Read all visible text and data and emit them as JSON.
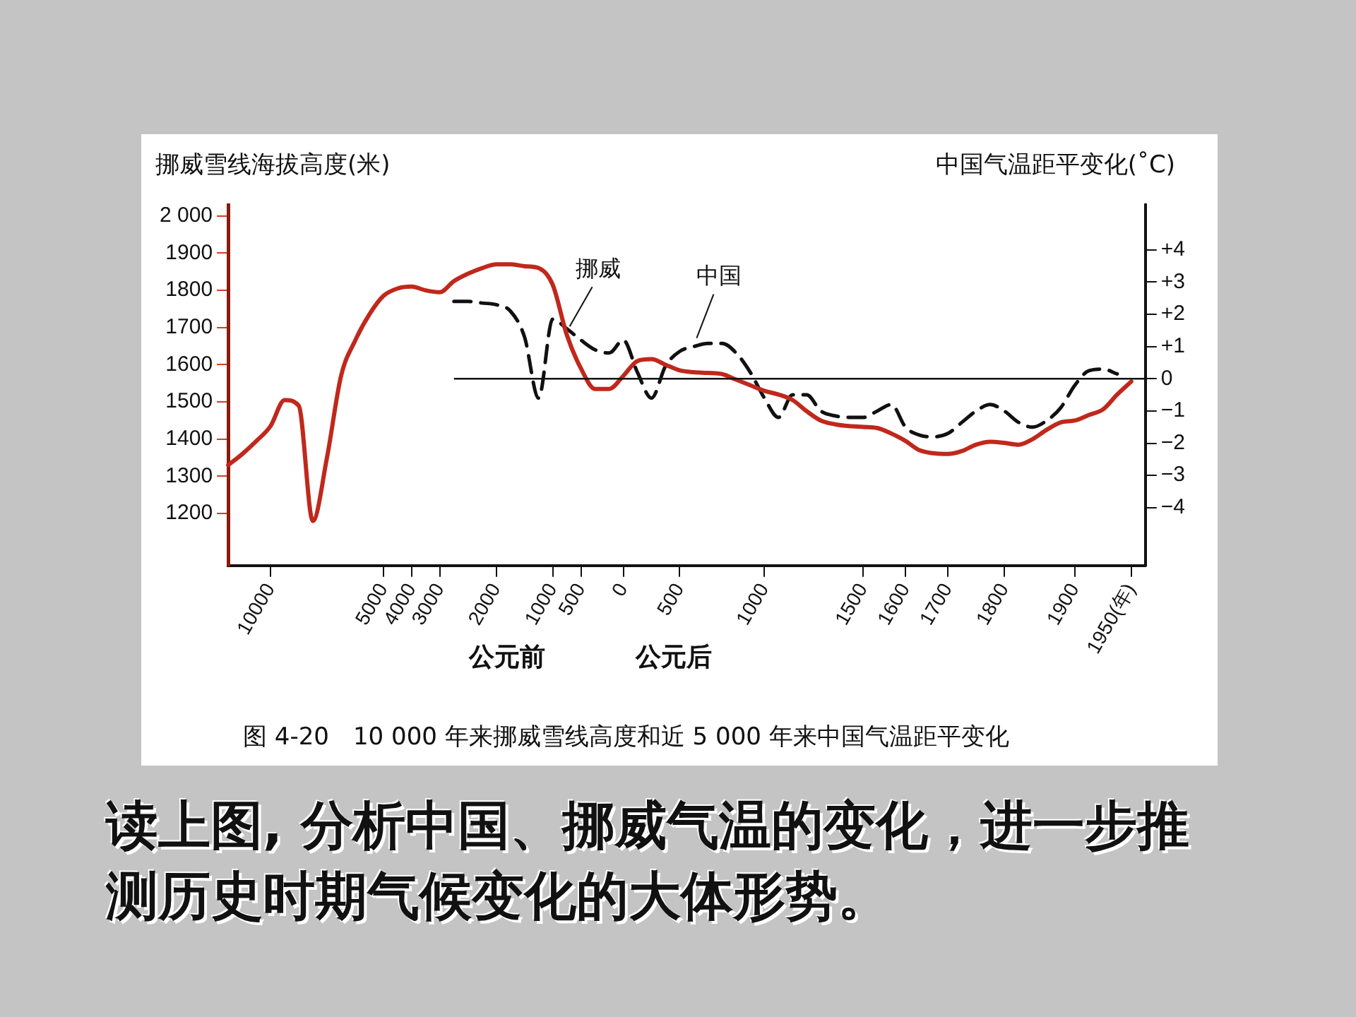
{
  "chart_data": {
    "type": "line",
    "ylabel": "挪威雪线海拔高度(米)",
    "y2label": "中国气温距平变化(˚C)",
    "categories": [
      null,
      null,
      null,
      "10000",
      null,
      null,
      null,
      null,
      null,
      null,
      null,
      "5000",
      null,
      "4000",
      null,
      "3000",
      null,
      null,
      null,
      "2000",
      null,
      null,
      null,
      "1000",
      null,
      "500",
      null,
      null,
      "0",
      null,
      null,
      null,
      "500",
      null,
      null,
      null,
      null,
      null,
      "1000",
      null,
      null,
      null,
      null,
      null,
      null,
      "1500",
      null,
      null,
      "1600",
      null,
      null,
      "1700",
      null,
      null,
      null,
      "1800",
      null,
      null,
      null,
      null,
      "1900",
      null,
      null,
      null,
      "1950(年)",
      null
    ],
    "series": [
      {
        "name": "挪威",
        "color": "#c0281c",
        "line_style": "solid",
        "values": [
          1330,
          1360,
          1395,
          1435,
          1505,
          1490,
          1180,
          1350,
          1570,
          1665,
          1735,
          1785,
          1805,
          1810,
          1800,
          1795,
          1825,
          1845,
          1860,
          1870,
          1870,
          1865,
          1860,
          1815,
          1680,
          1590,
          1535,
          1535,
          1570,
          1610,
          1615,
          1600,
          1585,
          1580,
          1578,
          1575,
          1560,
          1545,
          1530,
          1520,
          1505,
          1475,
          1450,
          1440,
          1435,
          1433,
          1430,
          1415,
          1395,
          1370,
          1362,
          1360,
          1368,
          1385,
          1393,
          1390,
          1385,
          1400,
          1425,
          1445,
          1450,
          1465,
          1480,
          1520,
          1555,
          null
        ]
      },
      {
        "name": "中国",
        "color": "#111111",
        "line_style": "dashed",
        "axis": "y2",
        "values": [
          null,
          null,
          null,
          null,
          null,
          null,
          null,
          null,
          null,
          null,
          null,
          null,
          null,
          null,
          null,
          null,
          2.4,
          2.4,
          2.35,
          2.3,
          2.1,
          1.3,
          -0.6,
          1.85,
          1.55,
          1.2,
          0.9,
          0.8,
          1.2,
          0.2,
          -0.6,
          0.4,
          0.85,
          1.0,
          1.1,
          1.1,
          0.8,
          0.2,
          -0.6,
          -1.2,
          -0.5,
          -0.5,
          -1.0,
          -1.15,
          -1.2,
          -1.2,
          -1.0,
          -0.8,
          -1.5,
          -1.75,
          -1.8,
          -1.7,
          -1.35,
          -1.0,
          -0.8,
          -1.0,
          -1.35,
          -1.5,
          -1.3,
          -0.9,
          -0.2,
          0.25,
          0.3,
          0.15,
          null,
          null
        ]
      }
    ],
    "ylim": [
      1060,
      2030
    ],
    "yticks": [
      1200,
      1300,
      1400,
      1500,
      1600,
      1700,
      1800,
      1900,
      {
        "value": 2000,
        "label": "2 000"
      }
    ],
    "y2lim": [
      -5.8,
      5.4
    ],
    "y2ticks": [
      {
        "value": -4,
        "label": "−4"
      },
      {
        "value": -3,
        "label": "−3"
      },
      {
        "value": -2,
        "label": "−2"
      },
      {
        "value": -1,
        "label": "−1"
      },
      {
        "value": 0,
        "label": "0"
      },
      {
        "value": 1,
        "label": "+1"
      },
      {
        "value": 2,
        "label": "+2"
      },
      {
        "value": 3,
        "label": "+3"
      },
      {
        "value": 4,
        "label": "+4"
      }
    ],
    "ref_lines": [
      {
        "axis": "y2",
        "value": 0,
        "color": "#111111"
      }
    ],
    "grid": false,
    "legend": false,
    "marker": "none",
    "annotations": [
      "公元前",
      "公元后",
      "图 4-20　10 000 年来挪威雪线高度和近 5 000 年来中国气温距平变化",
      "读上图, 分析中国、挪威气温的变化，进一步推测历史时期气候变化的大体形势。"
    ]
  }
}
